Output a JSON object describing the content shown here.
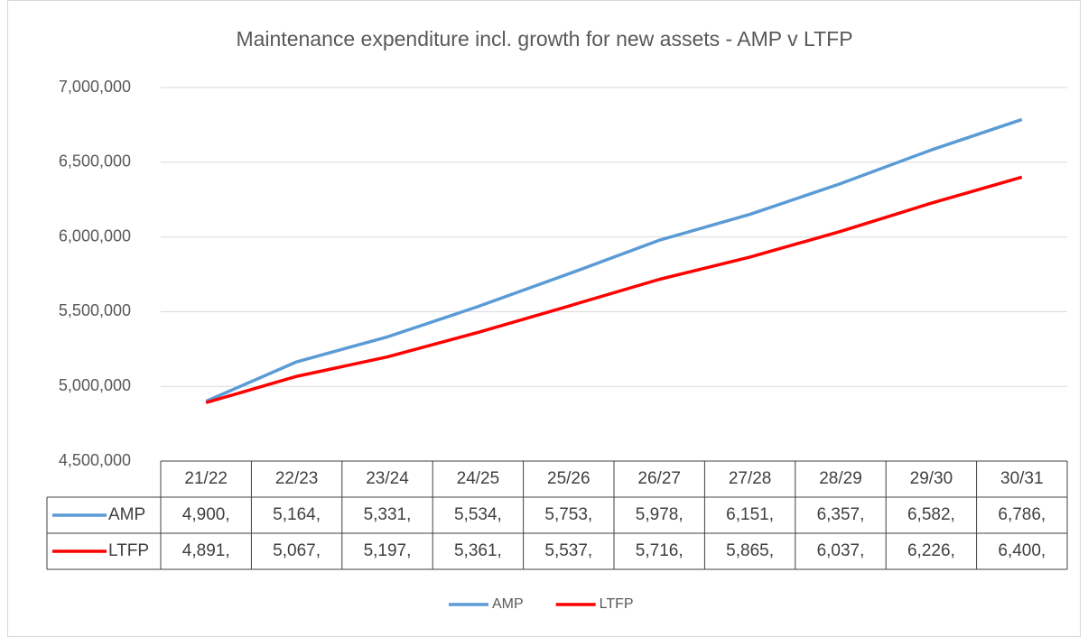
{
  "chart_data": {
    "type": "line",
    "title": "Maintenance expenditure incl. growth for new assets - AMP v LTFP",
    "categories": [
      "21/22",
      "22/23",
      "23/24",
      "24/25",
      "25/26",
      "26/27",
      "27/28",
      "28/29",
      "29/30",
      "30/31"
    ],
    "series": [
      {
        "name": "AMP",
        "color": "#5b9bd5",
        "values": [
          4900000,
          5164000,
          5331000,
          5534000,
          5753000,
          5978000,
          6151000,
          6357000,
          6582000,
          6786000
        ],
        "value_labels": [
          "4,900,",
          "5,164,",
          "5,331,",
          "5,534,",
          "5,753,",
          "5,978,",
          "6,151,",
          "6,357,",
          "6,582,",
          "6,786,"
        ]
      },
      {
        "name": "LTFP",
        "color": "#ff0000",
        "values": [
          4891000,
          5067000,
          5197000,
          5361000,
          5537000,
          5716000,
          5865000,
          6037000,
          6226000,
          6400000
        ],
        "value_labels": [
          "4,891,",
          "5,067,",
          "5,197,",
          "5,361,",
          "5,537,",
          "5,716,",
          "5,865,",
          "6,037,",
          "6,226,",
          "6,400,"
        ]
      }
    ],
    "ylim": [
      4500000,
      7000000
    ],
    "yticks": [
      {
        "value": 4500000,
        "label": "4,500,000"
      },
      {
        "value": 5000000,
        "label": "5,000,000"
      },
      {
        "value": 5500000,
        "label": "5,500,000"
      },
      {
        "value": 6000000,
        "label": "6,000,000"
      },
      {
        "value": 6500000,
        "label": "6,500,000"
      },
      {
        "value": 7000000,
        "label": "7,000,000"
      }
    ],
    "grid": true,
    "legend": "bottom"
  }
}
